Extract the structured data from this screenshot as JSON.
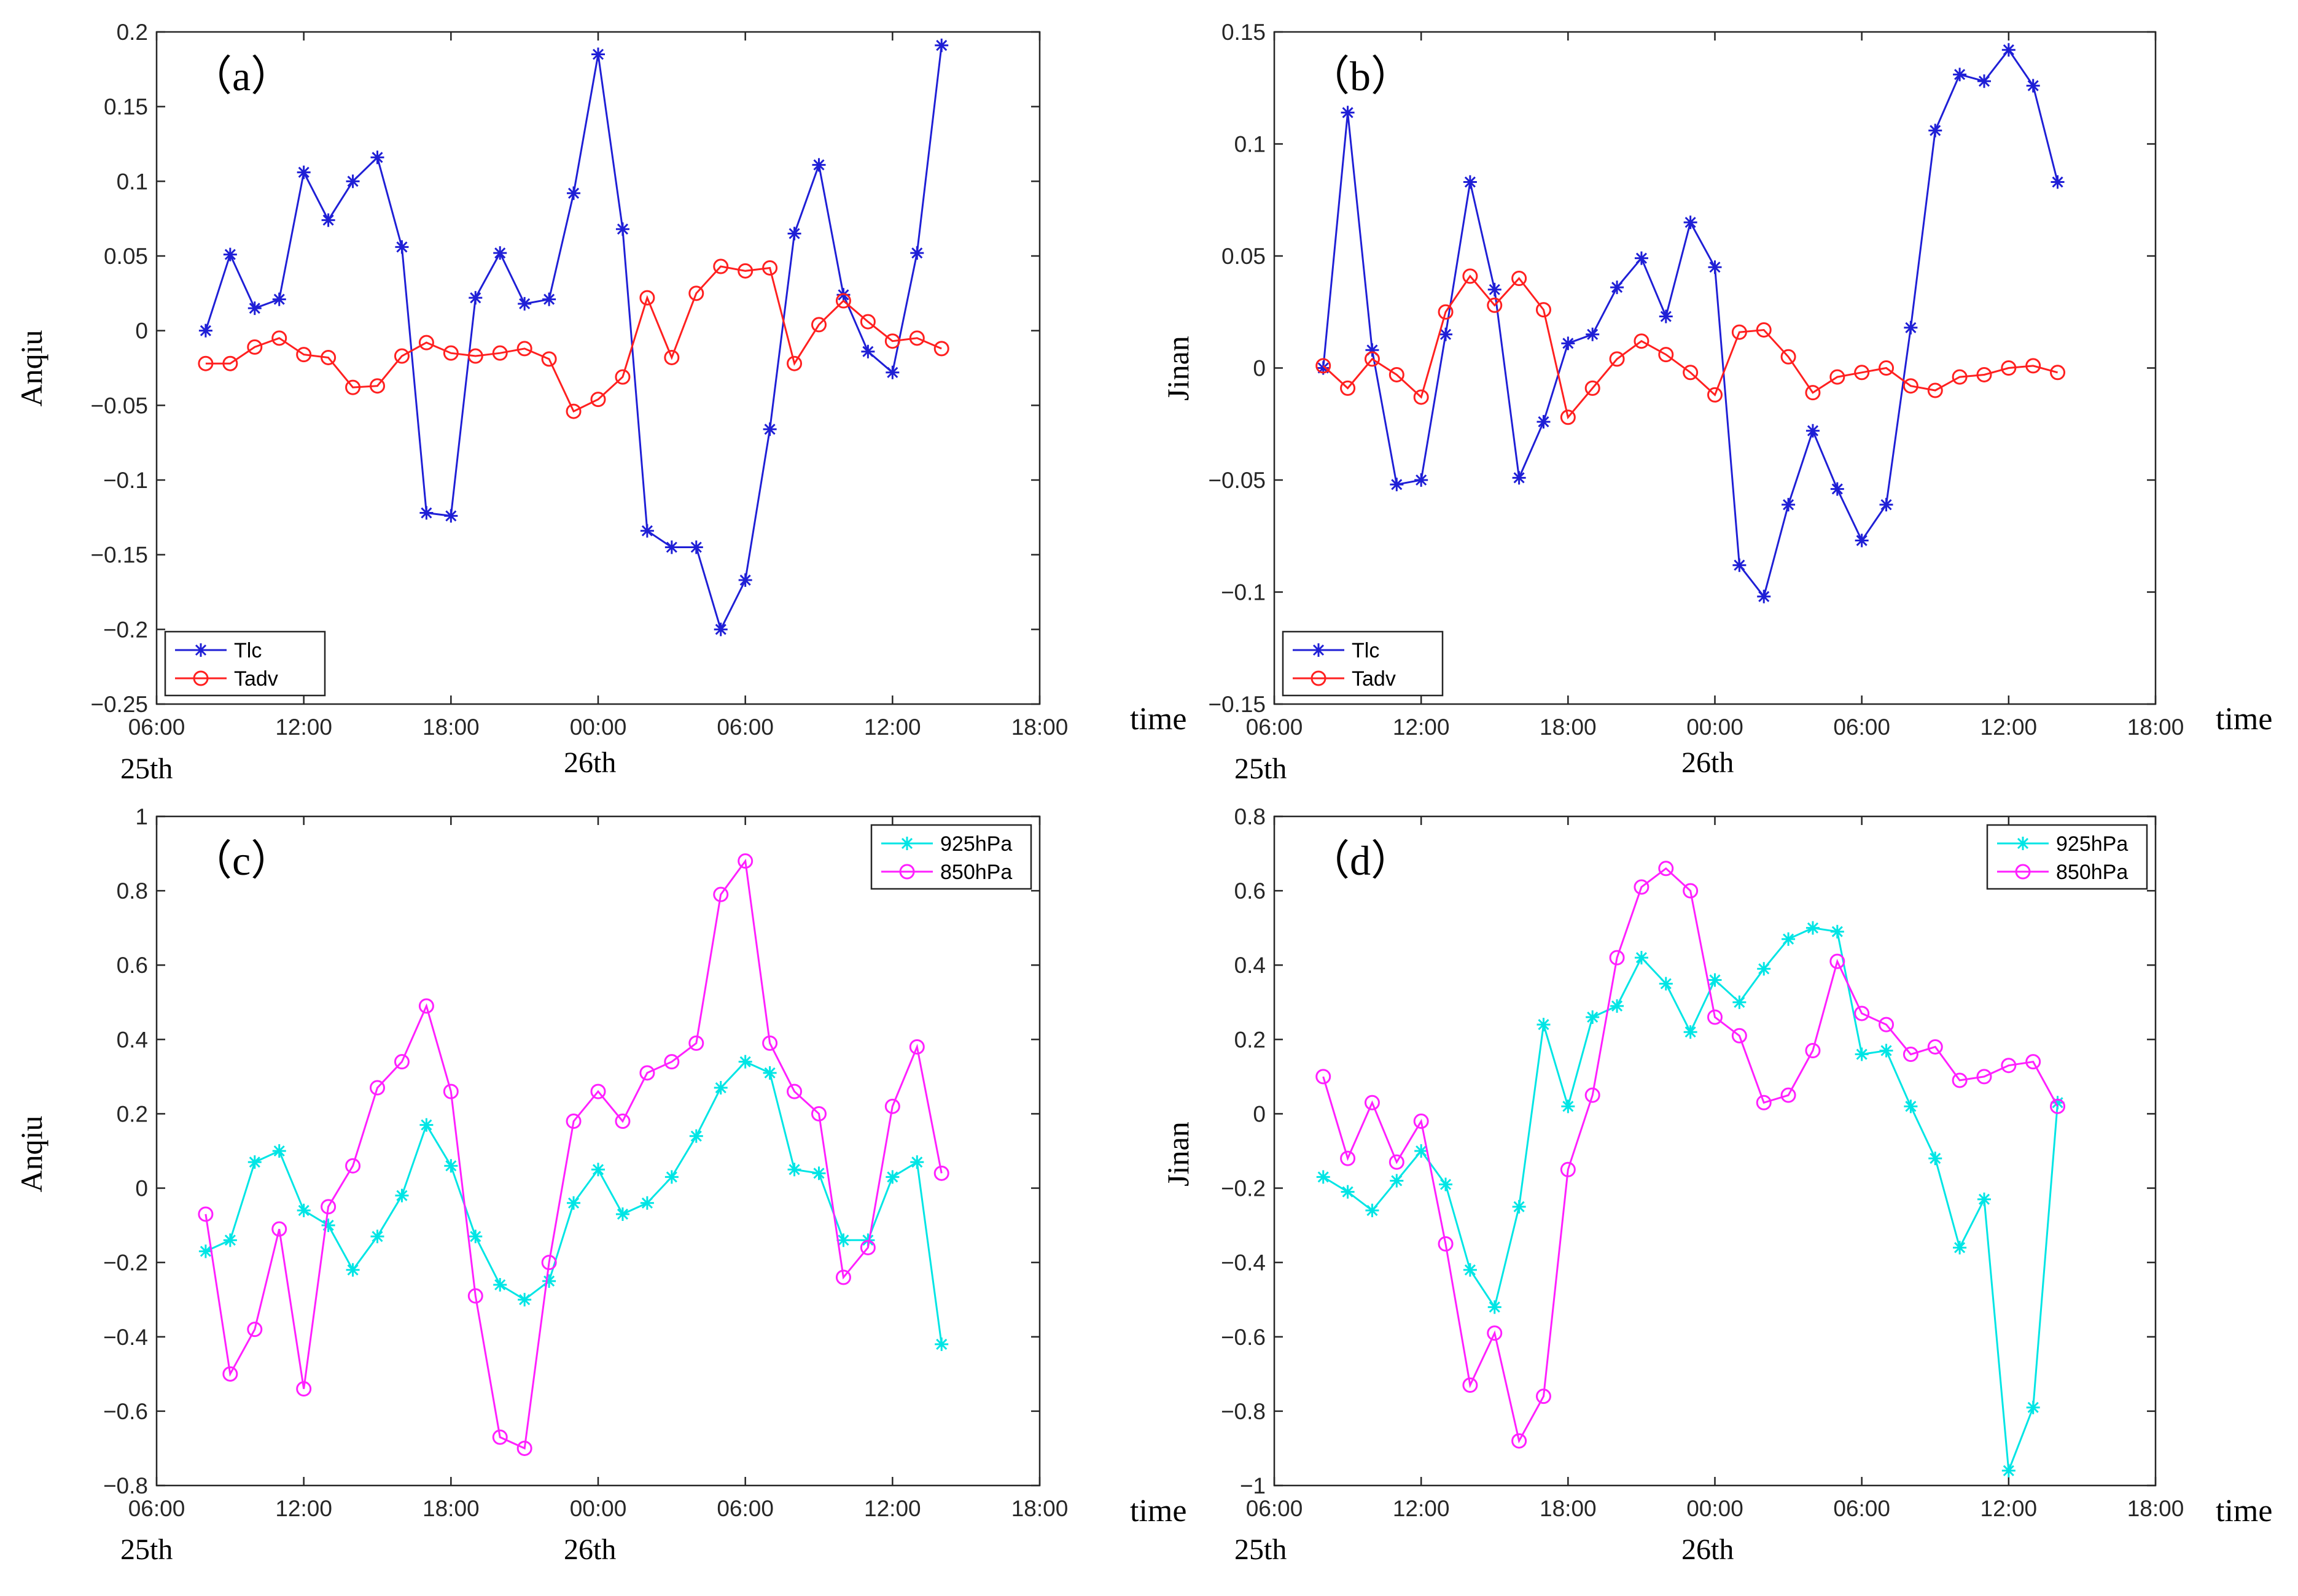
{
  "figure": {
    "x_axis_title": "time",
    "day_labels": [
      "25th",
      "26th"
    ]
  },
  "chart_data": [
    {
      "type": "line",
      "panel_label": "（a）",
      "ylabel": "Anqiu",
      "xlabel": "time",
      "x_tick_labels": [
        "06:00",
        "12:00",
        "18:00",
        "00:00",
        "06:00",
        "12:00",
        "18:00"
      ],
      "xlim": [
        0,
        36
      ],
      "ylim": [
        -0.25,
        0.2
      ],
      "y_ticks": [
        -0.25,
        -0.2,
        -0.15,
        -0.1,
        -0.05,
        0,
        0.05,
        0.1,
        0.15,
        0.2
      ],
      "y_tick_labels": [
        "−0.25",
        "−0.2",
        "−0.15",
        "−0.1",
        "−0.05",
        "0",
        "0.05",
        "0.1",
        "0.15",
        "0.2"
      ],
      "x": [
        2,
        3,
        4,
        5,
        6,
        7,
        8,
        9,
        10,
        11,
        12,
        13,
        14,
        15,
        16,
        17,
        18,
        19,
        20,
        21,
        22,
        23,
        24,
        25,
        26,
        27,
        28,
        29,
        30,
        31,
        32
      ],
      "legend_position": "bottom-left",
      "series": [
        {
          "name": "Tlc",
          "color": "#1f1fd6",
          "marker": "star",
          "values": [
            0.0,
            0.051,
            0.015,
            0.021,
            0.106,
            0.074,
            0.1,
            0.116,
            0.056,
            -0.122,
            -0.124,
            0.022,
            0.052,
            0.018,
            0.021,
            0.092,
            0.185,
            0.068,
            -0.134,
            -0.145,
            -0.145,
            -0.2,
            -0.167,
            -0.066,
            0.065,
            0.111,
            0.024,
            -0.014,
            -0.028,
            0.052,
            0.191
          ]
        },
        {
          "name": "Tadv",
          "color": "#ff2020",
          "marker": "circle",
          "values": [
            -0.022,
            -0.022,
            -0.011,
            -0.005,
            -0.016,
            -0.018,
            -0.038,
            -0.037,
            -0.017,
            -0.008,
            -0.015,
            -0.017,
            -0.015,
            -0.012,
            -0.019,
            -0.054,
            -0.046,
            -0.031,
            0.022,
            -0.018,
            0.025,
            0.043,
            0.04,
            0.042,
            -0.022,
            0.004,
            0.02,
            0.006,
            -0.007,
            -0.005,
            -0.012
          ]
        }
      ]
    },
    {
      "type": "line",
      "panel_label": "（b）",
      "ylabel": "Jinan",
      "xlabel": "time",
      "x_tick_labels": [
        "06:00",
        "12:00",
        "18:00",
        "00:00",
        "06:00",
        "12:00",
        "18:00"
      ],
      "xlim": [
        0,
        36
      ],
      "ylim": [
        -0.15,
        0.15
      ],
      "y_ticks": [
        -0.15,
        -0.1,
        -0.05,
        0,
        0.05,
        0.1,
        0.15
      ],
      "y_tick_labels": [
        "−0.15",
        "−0.1",
        "−0.05",
        "0",
        "0.05",
        "0.1",
        "0.15"
      ],
      "x": [
        2,
        3,
        4,
        5,
        6,
        7,
        8,
        9,
        10,
        11,
        12,
        13,
        14,
        15,
        16,
        17,
        18,
        19,
        20,
        21,
        22,
        23,
        24,
        25,
        26,
        27,
        28,
        29,
        30,
        31,
        32
      ],
      "legend_position": "bottom-left",
      "series": [
        {
          "name": "Tlc",
          "color": "#1f1fd6",
          "marker": "star",
          "values": [
            0.0,
            0.114,
            0.008,
            -0.052,
            -0.05,
            0.015,
            0.083,
            0.035,
            -0.049,
            -0.024,
            0.011,
            0.015,
            0.036,
            0.049,
            0.023,
            0.065,
            0.045,
            -0.088,
            -0.102,
            -0.061,
            -0.028,
            -0.054,
            -0.077,
            -0.061,
            0.018,
            0.106,
            0.131,
            0.128,
            0.142,
            0.126,
            0.083
          ]
        },
        {
          "name": "Tadv",
          "color": "#ff2020",
          "marker": "circle",
          "values": [
            0.001,
            -0.009,
            0.004,
            -0.003,
            -0.013,
            0.025,
            0.041,
            0.028,
            0.04,
            0.026,
            -0.022,
            -0.009,
            0.004,
            0.012,
            0.006,
            -0.002,
            -0.012,
            0.016,
            0.017,
            0.005,
            -0.011,
            -0.004,
            -0.002,
            0.0,
            -0.008,
            -0.01,
            -0.004,
            -0.003,
            0.0,
            0.001,
            -0.002
          ]
        }
      ]
    },
    {
      "type": "line",
      "panel_label": "（c）",
      "ylabel": "Anqiu",
      "xlabel": "time",
      "x_tick_labels": [
        "06:00",
        "12:00",
        "18:00",
        "00:00",
        "06:00",
        "12:00",
        "18:00"
      ],
      "xlim": [
        0,
        36
      ],
      "ylim": [
        -0.8,
        1
      ],
      "y_ticks": [
        -0.8,
        -0.6,
        -0.4,
        -0.2,
        0,
        0.2,
        0.4,
        0.6,
        0.8,
        1
      ],
      "y_tick_labels": [
        "−0.8",
        "−0.6",
        "−0.4",
        "−0.2",
        "0",
        "0.2",
        "0.4",
        "0.6",
        "0.8",
        "1"
      ],
      "x": [
        2,
        3,
        4,
        5,
        6,
        7,
        8,
        9,
        10,
        11,
        12,
        13,
        14,
        15,
        16,
        17,
        18,
        19,
        20,
        21,
        22,
        23,
        24,
        25,
        26,
        27,
        28,
        29,
        30,
        31,
        32
      ],
      "legend_position": "top-right",
      "series": [
        {
          "name": "925hPa",
          "color": "#00e5e5",
          "marker": "star",
          "values": [
            -0.17,
            -0.14,
            0.07,
            0.1,
            -0.06,
            -0.1,
            -0.22,
            -0.13,
            -0.02,
            0.17,
            0.06,
            -0.13,
            -0.26,
            -0.3,
            -0.25,
            -0.04,
            0.05,
            -0.07,
            -0.04,
            0.03,
            0.14,
            0.27,
            0.34,
            0.31,
            0.05,
            0.04,
            -0.14,
            -0.14,
            0.03,
            0.07,
            -0.42
          ]
        },
        {
          "name": "850hPa",
          "color": "#ff20ff",
          "marker": "circle",
          "values": [
            -0.07,
            -0.5,
            -0.38,
            -0.11,
            -0.54,
            -0.05,
            0.06,
            0.27,
            0.34,
            0.49,
            0.26,
            -0.29,
            -0.67,
            -0.7,
            -0.2,
            0.18,
            0.26,
            0.18,
            0.31,
            0.34,
            0.39,
            0.79,
            0.88,
            0.39,
            0.26,
            0.2,
            -0.24,
            -0.16,
            0.22,
            0.38,
            0.04
          ]
        }
      ]
    },
    {
      "type": "line",
      "panel_label": "（d）",
      "ylabel": "Jinan",
      "xlabel": "time",
      "x_tick_labels": [
        "06:00",
        "12:00",
        "18:00",
        "00:00",
        "06:00",
        "12:00",
        "18:00"
      ],
      "xlim": [
        0,
        36
      ],
      "ylim": [
        -1,
        0.8
      ],
      "y_ticks": [
        -1,
        -0.8,
        -0.6,
        -0.4,
        -0.2,
        0,
        0.2,
        0.4,
        0.6,
        0.8
      ],
      "y_tick_labels": [
        "−1",
        "−0.8",
        "−0.6",
        "−0.4",
        "−0.2",
        "0",
        "0.2",
        "0.4",
        "0.6",
        "0.8"
      ],
      "x": [
        2,
        3,
        4,
        5,
        6,
        7,
        8,
        9,
        10,
        11,
        12,
        13,
        14,
        15,
        16,
        17,
        18,
        19,
        20,
        21,
        22,
        23,
        24,
        25,
        26,
        27,
        28,
        29,
        30,
        31,
        32
      ],
      "legend_position": "top-right",
      "series": [
        {
          "name": "925hPa",
          "color": "#00e5e5",
          "marker": "star",
          "values": [
            -0.17,
            -0.21,
            -0.26,
            -0.18,
            -0.1,
            -0.19,
            -0.42,
            -0.52,
            -0.25,
            0.24,
            0.02,
            0.26,
            0.29,
            0.42,
            0.35,
            0.22,
            0.36,
            0.3,
            0.39,
            0.47,
            0.5,
            0.49,
            0.16,
            0.17,
            0.02,
            -0.12,
            -0.36,
            -0.23,
            -0.96,
            -0.79,
            0.03
          ]
        },
        {
          "name": "850hPa",
          "color": "#ff20ff",
          "marker": "circle",
          "values": [
            0.1,
            -0.12,
            0.03,
            -0.13,
            -0.02,
            -0.35,
            -0.73,
            -0.59,
            -0.88,
            -0.76,
            -0.15,
            0.05,
            0.42,
            0.61,
            0.66,
            0.6,
            0.26,
            0.21,
            0.03,
            0.05,
            0.17,
            0.41,
            0.27,
            0.24,
            0.16,
            0.18,
            0.09,
            0.1,
            0.13,
            0.14,
            0.02
          ]
        }
      ]
    }
  ]
}
